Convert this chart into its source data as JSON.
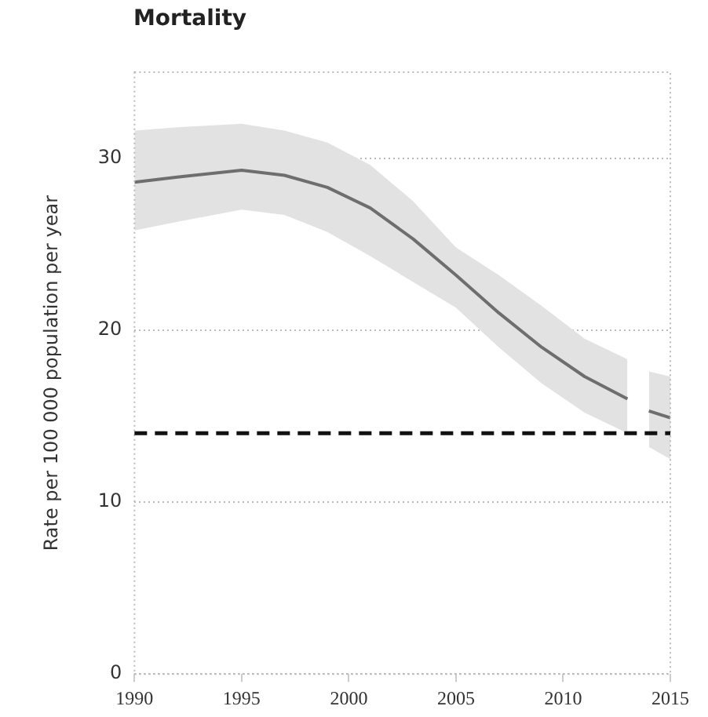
{
  "chart_data": {
    "type": "line",
    "title": "Mortality",
    "ylabel": "Rate per 100 000 population per year",
    "x": [
      1990,
      1992,
      1995,
      1997,
      1999,
      2001,
      2003,
      2005,
      2007,
      2009,
      2011,
      2013,
      2013.5,
      2014,
      2015
    ],
    "series": [
      {
        "color": "#6e6e6e",
        "values": [
          28.6,
          28.9,
          29.3,
          29.0,
          28.3,
          27.1,
          25.3,
          23.2,
          21.0,
          19.0,
          17.3,
          16.0,
          null,
          15.3,
          14.9
        ],
        "lower": [
          25.8,
          26.3,
          27.0,
          26.7,
          25.7,
          24.3,
          22.8,
          21.3,
          19.0,
          16.9,
          15.2,
          14.0,
          null,
          13.2,
          12.5
        ],
        "upper": [
          31.6,
          31.8,
          32.0,
          31.6,
          30.9,
          29.6,
          27.5,
          24.8,
          23.2,
          21.4,
          19.5,
          18.3,
          null,
          17.6,
          17.3
        ]
      }
    ],
    "xlim": [
      1990,
      2015
    ],
    "xticks": [
      1990,
      1995,
      2000,
      2005,
      2010,
      2015
    ],
    "ylim": [
      0,
      35
    ],
    "yticks": [
      0,
      10,
      20,
      30
    ],
    "ref_lines": [
      {
        "axis": "y",
        "value": 14,
        "color": "#111111",
        "line_style": "dashed"
      }
    ],
    "grid": "y",
    "legend": false,
    "marker": "none",
    "line_style": "solid"
  }
}
